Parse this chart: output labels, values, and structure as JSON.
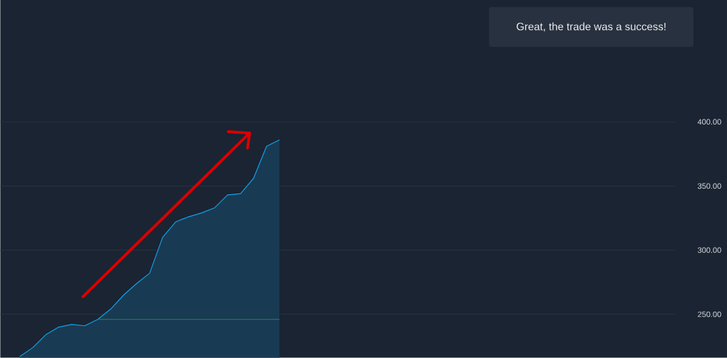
{
  "chart_data": {
    "type": "area",
    "annotations": [
      "Great, the trade was a success!"
    ],
    "categories": [
      null,
      null,
      null,
      null,
      null,
      null,
      null,
      null,
      null,
      null,
      null,
      null,
      null,
      null,
      null,
      null,
      null,
      null,
      null,
      null,
      null,
      null,
      null,
      null,
      null,
      null,
      null,
      null,
      null,
      null,
      null,
      null,
      null,
      null,
      null,
      null,
      null,
      null,
      null,
      null,
      null,
      null,
      null,
      null,
      null,
      null,
      null,
      null,
      null,
      null,
      null,
      null
    ],
    "series": [
      {
        "color": "#12a0e6",
        "values": [
          null,
          217,
          224,
          234,
          240,
          242,
          241,
          246,
          254,
          265,
          274,
          282,
          310,
          322,
          326,
          329,
          333,
          343,
          344,
          356,
          381,
          386,
          null,
          null,
          null,
          null,
          null,
          null,
          null,
          null,
          null,
          null,
          null,
          null,
          null,
          null,
          null,
          null,
          null,
          null,
          null,
          null,
          null,
          null,
          null,
          null,
          null,
          null,
          null,
          null,
          null,
          null
        ]
      },
      {
        "type": "line",
        "color": "#1f8a5a",
        "values": [
          null,
          null,
          null,
          null,
          null,
          null,
          null,
          246,
          246,
          246,
          246,
          246,
          246,
          246,
          246,
          246,
          246,
          246,
          246,
          246,
          246,
          246,
          null,
          null,
          null,
          null,
          null,
          null,
          null,
          null,
          null,
          null,
          null,
          null,
          null,
          null,
          null,
          null,
          null,
          null,
          null,
          null,
          null,
          null,
          null,
          null,
          null,
          null,
          null,
          null,
          null,
          null
        ]
      }
    ],
    "ylim": [
      216,
      495
    ],
    "yticks": [
      {
        "value": 250,
        "label": "250.00"
      },
      {
        "value": 300,
        "label": "300.00"
      },
      {
        "value": 350,
        "label": "350.00"
      },
      {
        "value": 400,
        "label": "400.00"
      }
    ],
    "tick_labels": "y",
    "grid": "y"
  }
}
